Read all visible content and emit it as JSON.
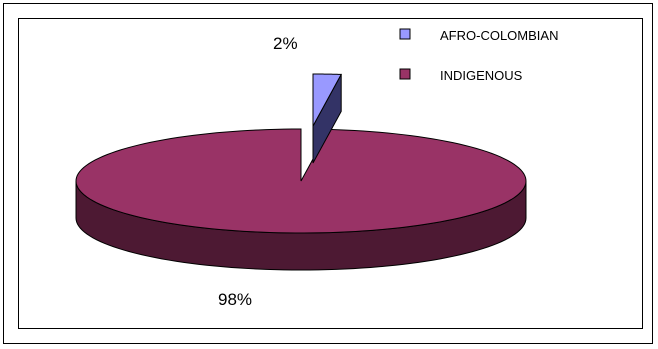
{
  "chart_data": {
    "type": "pie",
    "style": "3d-exploded",
    "slices": [
      {
        "label": "AFRO-COLOMBIAN",
        "value": 2,
        "value_label": "2%",
        "color": "#9999ff",
        "side_color": "#333366"
      },
      {
        "label": "INDIGENOUS",
        "value": 98,
        "value_label": "98%",
        "color": "#993366",
        "side_color": "#4d1933"
      }
    ],
    "legend": {
      "position": "top-right",
      "items": [
        {
          "label": "AFRO-COLOMBIAN",
          "color": "#9999ff"
        },
        {
          "label": "INDIGENOUS",
          "color": "#993366"
        }
      ]
    }
  }
}
